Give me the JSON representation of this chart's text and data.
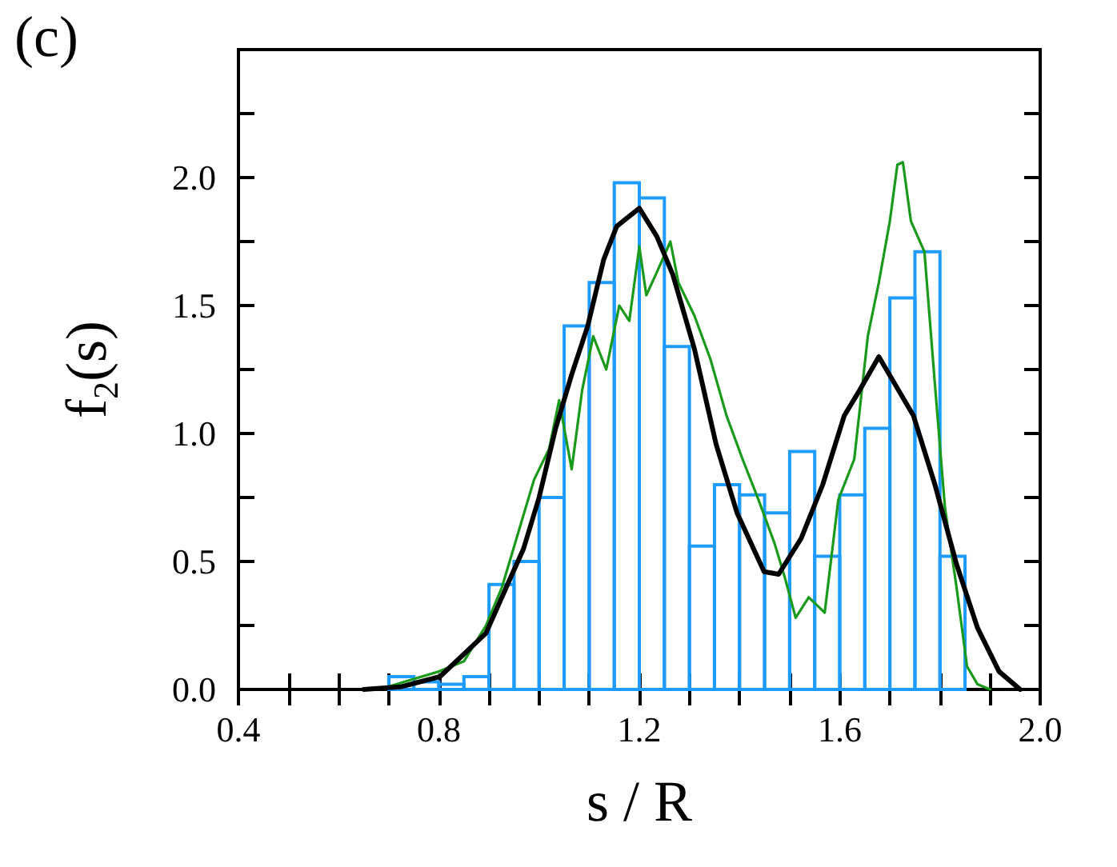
{
  "chart_data": {
    "type": "histogram",
    "title": "(c)",
    "xlabel": "s / R",
    "ylabel": "f$_{2}$(s)",
    "bins": [
      0.7,
      0.75,
      0.8,
      0.85,
      0.9,
      0.95,
      1.0,
      1.05,
      1.1,
      1.15,
      1.2,
      1.25,
      1.3,
      1.35,
      1.4,
      1.45,
      1.5,
      1.55,
      1.6,
      1.65,
      1.7,
      1.75,
      1.8,
      1.85
    ],
    "values": [
      0.05,
      0.03,
      0.02,
      0.05,
      0.41,
      0.5,
      0.75,
      1.42,
      1.59,
      1.98,
      1.92,
      1.34,
      0.56,
      0.8,
      0.76,
      0.69,
      0.93,
      0.52,
      0.76,
      1.02,
      1.53,
      1.71,
      0.52
    ],
    "color": "#1e9bff",
    "series": [
      {
        "type": "line",
        "color": "#1a9a1a",
        "x": [
          0.68,
          0.8,
          0.85,
          0.894,
          0.926,
          0.958,
          0.99,
          1.02,
          1.04,
          1.065,
          1.086,
          1.108,
          1.134,
          1.16,
          1.18,
          1.2,
          1.214,
          1.235,
          1.262,
          1.278,
          1.31,
          1.342,
          1.374,
          1.406,
          1.438,
          1.47,
          1.49,
          1.512,
          1.538,
          1.57,
          1.597,
          1.629,
          1.656,
          1.678,
          1.7,
          1.715,
          1.726,
          1.742,
          1.769,
          1.79,
          1.81,
          1.833,
          1.854,
          1.875,
          1.9
        ],
        "values": [
          0,
          0.07,
          0.11,
          0.25,
          0.4,
          0.61,
          0.82,
          0.94,
          1.13,
          0.86,
          1.17,
          1.38,
          1.25,
          1.5,
          1.44,
          1.73,
          1.54,
          1.63,
          1.75,
          1.59,
          1.46,
          1.29,
          1.07,
          0.9,
          0.74,
          0.57,
          0.44,
          0.28,
          0.36,
          0.3,
          0.74,
          0.9,
          1.38,
          1.59,
          1.83,
          2.05,
          2.06,
          1.83,
          1.71,
          1.19,
          0.71,
          0.4,
          0.09,
          0.02,
          0
        ]
      },
      {
        "type": "line",
        "color": "#000000",
        "x": [
          0.65,
          0.723,
          0.802,
          0.851,
          0.894,
          0.937,
          0.969,
          1.0,
          1.033,
          1.065,
          1.097,
          1.129,
          1.155,
          1.2,
          1.235,
          1.267,
          1.31,
          1.353,
          1.395,
          1.449,
          1.478,
          1.523,
          1.566,
          1.609,
          1.64,
          1.678,
          1.705,
          1.747,
          1.79,
          1.833,
          1.875,
          1.918,
          1.96
        ],
        "values": [
          0,
          0.01,
          0.05,
          0.14,
          0.22,
          0.41,
          0.55,
          0.75,
          1.02,
          1.23,
          1.42,
          1.68,
          1.81,
          1.88,
          1.77,
          1.62,
          1.33,
          0.96,
          0.69,
          0.46,
          0.45,
          0.59,
          0.8,
          1.07,
          1.17,
          1.3,
          1.21,
          1.07,
          0.8,
          0.49,
          0.24,
          0.07,
          0
        ]
      }
    ],
    "xlim": [
      0.4,
      2.0
    ],
    "xticks": [
      0.4,
      {
        "value": 0.5,
        "label": null
      },
      {
        "value": 0.6,
        "label": null
      },
      {
        "value": 0.7,
        "label": null
      },
      0.8,
      {
        "value": 0.9,
        "label": null
      },
      {
        "value": 1.0,
        "label": null
      },
      {
        "value": 1.1,
        "label": null
      },
      1.2,
      {
        "value": 1.3,
        "label": null
      },
      {
        "value": 1.4,
        "label": null
      },
      {
        "value": 1.5,
        "label": null
      },
      1.6,
      {
        "value": 1.7,
        "label": null
      },
      {
        "value": 1.8,
        "label": null
      },
      {
        "value": 1.9,
        "label": null
      },
      {
        "value": 2,
        "label": "2.0"
      }
    ],
    "ylim": [
      0,
      2.5
    ],
    "yticks": [
      {
        "value": 0,
        "label": "0.0"
      },
      {
        "value": 0.25,
        "label": null
      },
      {
        "value": 0.5,
        "label": "0.5"
      },
      {
        "value": 0.75,
        "label": null
      },
      {
        "value": 1,
        "label": "1.0"
      },
      {
        "value": 1.25,
        "label": null
      },
      {
        "value": 1.5,
        "label": "1.5"
      },
      {
        "value": 1.75,
        "label": null
      },
      {
        "value": 2,
        "label": "2.0"
      },
      {
        "value": 2.25,
        "label": null
      },
      {
        "value": 2.5,
        "label": null
      }
    ],
    "grid": false,
    "marker": "none",
    "line_style": "solid"
  }
}
